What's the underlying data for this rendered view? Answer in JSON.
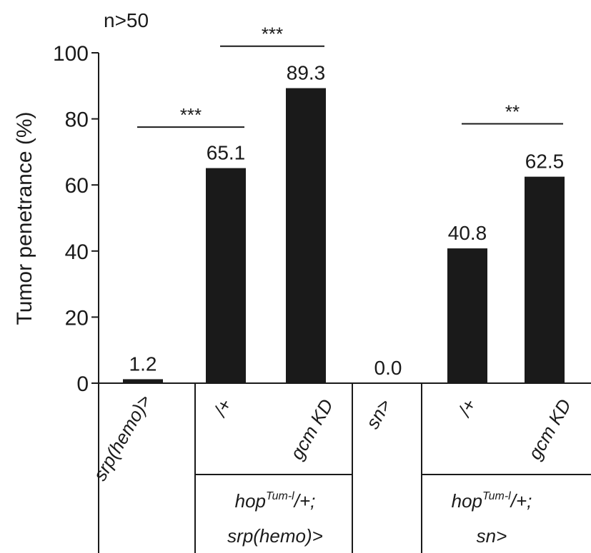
{
  "chart_data": {
    "type": "bar",
    "annotation_n": "n>50",
    "ylabel": "Tumor penetrance (%)",
    "ylim": [
      0,
      100
    ],
    "yticks": [
      "0",
      "20",
      "40",
      "60",
      "80",
      "100"
    ],
    "bar_color": "#1a1a1a",
    "bars": [
      {
        "category": "srp(hemo)>",
        "value": 1.2,
        "label": "1.2"
      },
      {
        "category": "/+",
        "value": 65.1,
        "label": "65.1"
      },
      {
        "category": "gcm KD",
        "value": 89.3,
        "label": "89.3"
      },
      {
        "category": "sn>",
        "value": 0.0,
        "label": "0.0"
      },
      {
        "category": "/+",
        "value": 40.8,
        "label": "40.8"
      },
      {
        "category": "gcm KD",
        "value": 62.5,
        "label": "62.5"
      }
    ],
    "groups": [
      {
        "line1_main": "hop",
        "line1_sup": "Tum-l",
        "line1_rest": "/+;",
        "line2": "srp(hemo)>"
      },
      {
        "line1_main": "hop",
        "line1_sup": "Tum-l",
        "line1_rest": "/+;",
        "line2": "sn>"
      }
    ],
    "significance": [
      {
        "from": 0,
        "to": 1,
        "label": "***",
        "y": 77.5
      },
      {
        "from": 1,
        "to": 2,
        "label": "***",
        "y": 102
      },
      {
        "from": 4,
        "to": 5,
        "label": "**",
        "y": 78.5
      }
    ]
  }
}
